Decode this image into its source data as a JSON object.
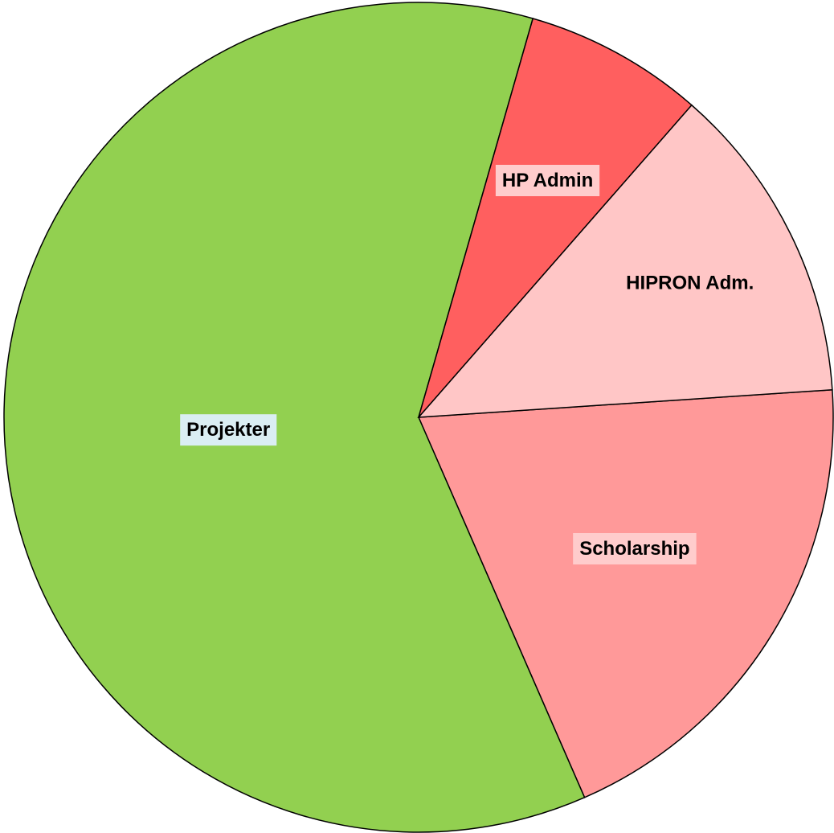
{
  "chart_data": {
    "type": "pie",
    "title": "",
    "slices": [
      {
        "label": "Scholarship",
        "value": 19.5,
        "color": "#ff9999",
        "label_bg": "#ffcccc"
      },
      {
        "label": "Projekter",
        "value": 61.0,
        "color": "#92d050",
        "label_bg": "#daeef3"
      },
      {
        "label": "HP Admin",
        "value": 7.0,
        "color": "#ff5f5f",
        "label_bg": "#ffcccc"
      },
      {
        "label": "HIPRON Adm.",
        "value": 12.5,
        "color": "#ffc6c6",
        "label_bg": "#ffc6c6"
      }
    ],
    "legend": "none"
  }
}
